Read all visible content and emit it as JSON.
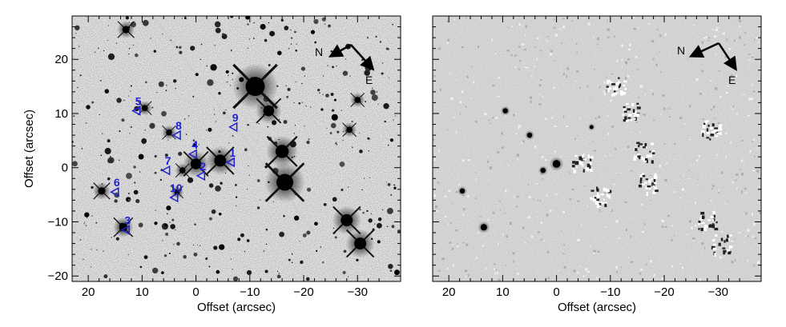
{
  "figure": {
    "xlabel": "Offset (arcsec)",
    "ylabel": "Offset (arcsec)",
    "x_ticks": [
      "20",
      "10",
      "0",
      "−10",
      "−20",
      "−30"
    ],
    "y_ticks": [
      "20",
      "10",
      "0",
      "−10",
      "−20"
    ],
    "x_range": [
      23,
      -38
    ],
    "y_range": [
      -21,
      28
    ],
    "marker_color": "#1f1fd6",
    "compass": {
      "north_label": "N",
      "east_label": "E"
    }
  },
  "left_panel": {
    "markers": [
      {
        "label": "1",
        "x": -6.5,
        "y": 1
      },
      {
        "label": "2",
        "x": -1.0,
        "y": -1.5
      },
      {
        "label": "3",
        "x": 13.0,
        "y": -11.5
      },
      {
        "label": "4",
        "x": 0.5,
        "y": 2.5
      },
      {
        "label": "5",
        "x": 11.0,
        "y": 10.5
      },
      {
        "label": "6",
        "x": 15.0,
        "y": -4.5
      },
      {
        "label": "7",
        "x": 5.5,
        "y": -0.5
      },
      {
        "label": "8",
        "x": 3.5,
        "y": 6.0
      },
      {
        "label": "9",
        "x": -7.0,
        "y": 7.5
      },
      {
        "label": "10",
        "x": 4.0,
        "y": -5.5
      }
    ]
  },
  "right_panel": {}
}
